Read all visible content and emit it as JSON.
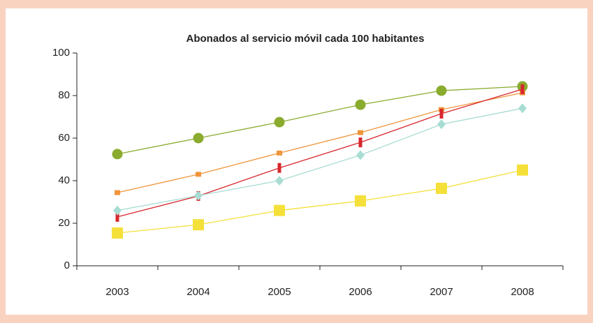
{
  "chart_data": {
    "type": "line",
    "title": "Abonados al servicio móvil cada 100 habitantes",
    "categories": [
      "2003",
      "2004",
      "2005",
      "2006",
      "2007",
      "2008"
    ],
    "series": [
      {
        "color": "#8aab2e",
        "marker": "circle",
        "values": [
          52.5,
          60,
          67.5,
          75.7,
          82.3,
          84.3
        ]
      },
      {
        "color": "#f0953a",
        "marker": "small-rect",
        "values": [
          34.4,
          43,
          53,
          62.6,
          73.4,
          81.3
        ]
      },
      {
        "color": "#d7262d",
        "marker": "bar",
        "values": [
          23,
          32.8,
          46,
          58,
          71.5,
          83
        ]
      },
      {
        "color": "#a8ddd3",
        "marker": "diamond",
        "values": [
          26,
          33,
          40,
          52,
          66.5,
          74
        ]
      },
      {
        "color": "#f5e03a",
        "marker": "square",
        "values": [
          15.4,
          19.3,
          26,
          30.5,
          36.4,
          45
        ]
      }
    ],
    "ylim": [
      0,
      100
    ],
    "yticks": [
      0,
      20,
      40,
      60,
      80,
      100
    ],
    "grid": false
  }
}
